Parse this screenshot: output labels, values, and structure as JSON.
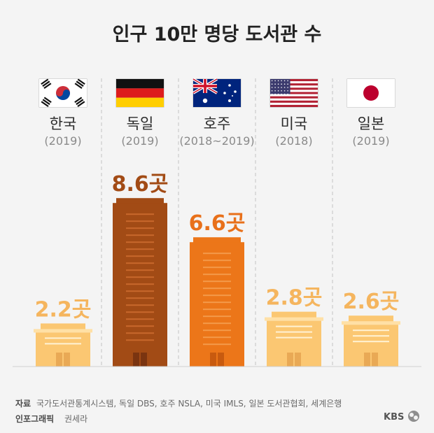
{
  "chart_data": {
    "type": "bar",
    "title": "인구 10만 명당 도서관 수",
    "unit": "곳",
    "categories": [
      "한국",
      "독일",
      "호주",
      "미국",
      "일본"
    ],
    "years": [
      "(2019)",
      "(2019)",
      "(2018~2019)",
      "(2018)",
      "(2019)"
    ],
    "value_labels": [
      "2.2곳",
      "8.6곳",
      "6.6곳",
      "2.8곳",
      "2.6곳"
    ],
    "values": [
      2.2,
      8.6,
      6.6,
      2.8,
      2.6
    ],
    "flags": [
      "korea-flag",
      "germany-flag",
      "australia-flag",
      "usa-flag",
      "japan-flag"
    ],
    "colors": {
      "light_building": "#fbc772",
      "light_value": "#f5b55e",
      "germany_building": "#a24b15",
      "germany_value": "#a24b15",
      "australia_building": "#ec7619",
      "australia_value": "#e8701a"
    }
  },
  "footer": {
    "source_label": "자료",
    "source_text": "국가도서관통계시스템, 독일 DBS, 호주 NSLA, 미국 IMLS, 일본 도서관협회, 세계은행",
    "credit_label": "인포그래픽",
    "credit_text": "권세라",
    "logo": "KBS"
  }
}
